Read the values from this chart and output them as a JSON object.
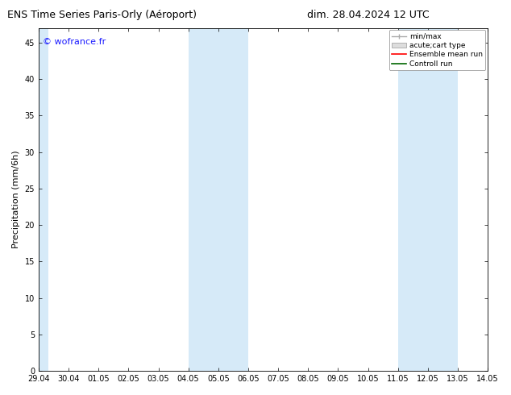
{
  "title_left": "ENS Time Series Paris-Orly (Aéroport)",
  "title_right": "dim. 28.04.2024 12 UTC",
  "ylabel": "Precipitation (mm/6h)",
  "watermark": "© wofrance.fr",
  "watermark_color": "#1a1aff",
  "xlim_start": 0,
  "xlim_end": 15,
  "ylim": [
    0,
    47
  ],
  "yticks": [
    0,
    5,
    10,
    15,
    20,
    25,
    30,
    35,
    40,
    45
  ],
  "xtick_labels": [
    "29.04",
    "30.04",
    "01.05",
    "02.05",
    "03.05",
    "04.05",
    "05.05",
    "06.05",
    "07.05",
    "08.05",
    "09.05",
    "10.05",
    "11.05",
    "12.05",
    "13.05",
    "14.05"
  ],
  "shaded_bands": [
    {
      "x_start": 0.0,
      "x_end": 0.33
    },
    {
      "x_start": 5.0,
      "x_end": 7.0
    },
    {
      "x_start": 12.0,
      "x_end": 14.0
    }
  ],
  "shaded_color": "#d6eaf8",
  "bg_color": "#ffffff",
  "plot_bg_color": "#ffffff",
  "legend_labels": [
    "min/max",
    "acute;cart type",
    "Ensemble mean run",
    "Controll run"
  ],
  "legend_line_colors": [
    "#aaaaaa",
    "#cccccc",
    "#ff0000",
    "#006600"
  ],
  "title_fontsize": 9,
  "axis_fontsize": 8,
  "tick_fontsize": 7,
  "watermark_fontsize": 8
}
